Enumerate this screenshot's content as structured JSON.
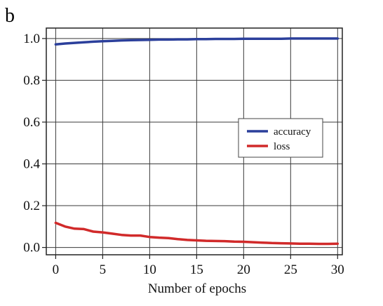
{
  "panel_label": "b",
  "chart_data": {
    "type": "line",
    "title": "",
    "xlabel": "Number of epochs",
    "ylabel": "",
    "xlim": [
      -1,
      30.5
    ],
    "ylim": [
      -0.035,
      1.05
    ],
    "xticks": [
      0,
      5,
      10,
      15,
      20,
      25,
      30
    ],
    "xtick_labels": [
      "0",
      "5",
      "10",
      "15",
      "20",
      "25",
      "30"
    ],
    "yticks": [
      0.0,
      0.2,
      0.4,
      0.6,
      0.8,
      1.0
    ],
    "ytick_labels": [
      "0.0",
      "0.2",
      "0.4",
      "0.6",
      "0.8",
      "1.0"
    ],
    "grid": true,
    "legend_position": "center-right",
    "series": [
      {
        "name": "accuracy",
        "color": "#2b3f9b",
        "x": [
          0,
          1,
          2,
          3,
          4,
          5,
          6,
          7,
          8,
          9,
          10,
          11,
          12,
          13,
          14,
          15,
          16,
          17,
          18,
          19,
          20,
          21,
          22,
          23,
          24,
          25,
          26,
          27,
          28,
          29,
          30
        ],
        "y": [
          0.972,
          0.976,
          0.979,
          0.982,
          0.985,
          0.987,
          0.989,
          0.991,
          0.992,
          0.993,
          0.994,
          0.995,
          0.995,
          0.996,
          0.996,
          0.997,
          0.997,
          0.998,
          0.998,
          0.998,
          0.999,
          0.999,
          0.999,
          0.999,
          0.999,
          1.0,
          1.0,
          1.0,
          1.0,
          1.0,
          1.0
        ]
      },
      {
        "name": "loss",
        "color": "#d12a2a",
        "x": [
          0,
          1,
          2,
          3,
          4,
          5,
          6,
          7,
          8,
          9,
          10,
          11,
          12,
          13,
          14,
          15,
          16,
          17,
          18,
          19,
          20,
          21,
          22,
          23,
          24,
          25,
          26,
          27,
          28,
          29,
          30
        ],
        "y": [
          0.118,
          0.1,
          0.09,
          0.088,
          0.076,
          0.072,
          0.066,
          0.06,
          0.057,
          0.057,
          0.05,
          0.047,
          0.045,
          0.04,
          0.036,
          0.034,
          0.032,
          0.031,
          0.03,
          0.028,
          0.027,
          0.025,
          0.023,
          0.021,
          0.02,
          0.019,
          0.018,
          0.018,
          0.017,
          0.017,
          0.018
        ]
      }
    ]
  }
}
